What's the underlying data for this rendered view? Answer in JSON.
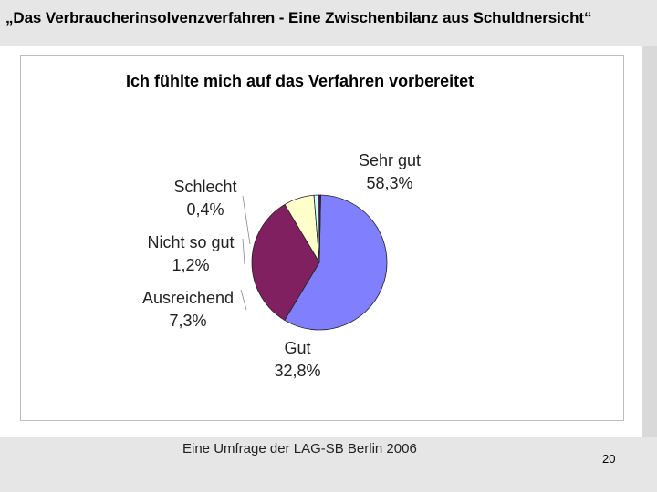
{
  "slide": {
    "title": "„Das Verbraucherinsolvenzverfahren -  Eine Zwischenbilanz aus Schuldnersicht“",
    "footer": "Eine Umfrage der LAG-SB Berlin 2006",
    "page_number": "20"
  },
  "chart_data": {
    "type": "pie",
    "title": "Ich fühlte mich auf das Verfahren vorbereitet",
    "slices": [
      {
        "label": "Sehr gut",
        "value_text": "58,3%",
        "value": 58.3,
        "color": "#8080ff"
      },
      {
        "label": "Gut",
        "value_text": "32,8%",
        "value": 32.8,
        "color": "#802060"
      },
      {
        "label": "Ausreichend",
        "value_text": "7,3%",
        "value": 7.3,
        "color": "#ffffcc"
      },
      {
        "label": "Nicht so gut",
        "value_text": "1,2%",
        "value": 1.2,
        "color": "#ccffff"
      },
      {
        "label": "Schlecht",
        "value_text": "0,4%",
        "value": 0.4,
        "color": "#660066"
      }
    ]
  }
}
